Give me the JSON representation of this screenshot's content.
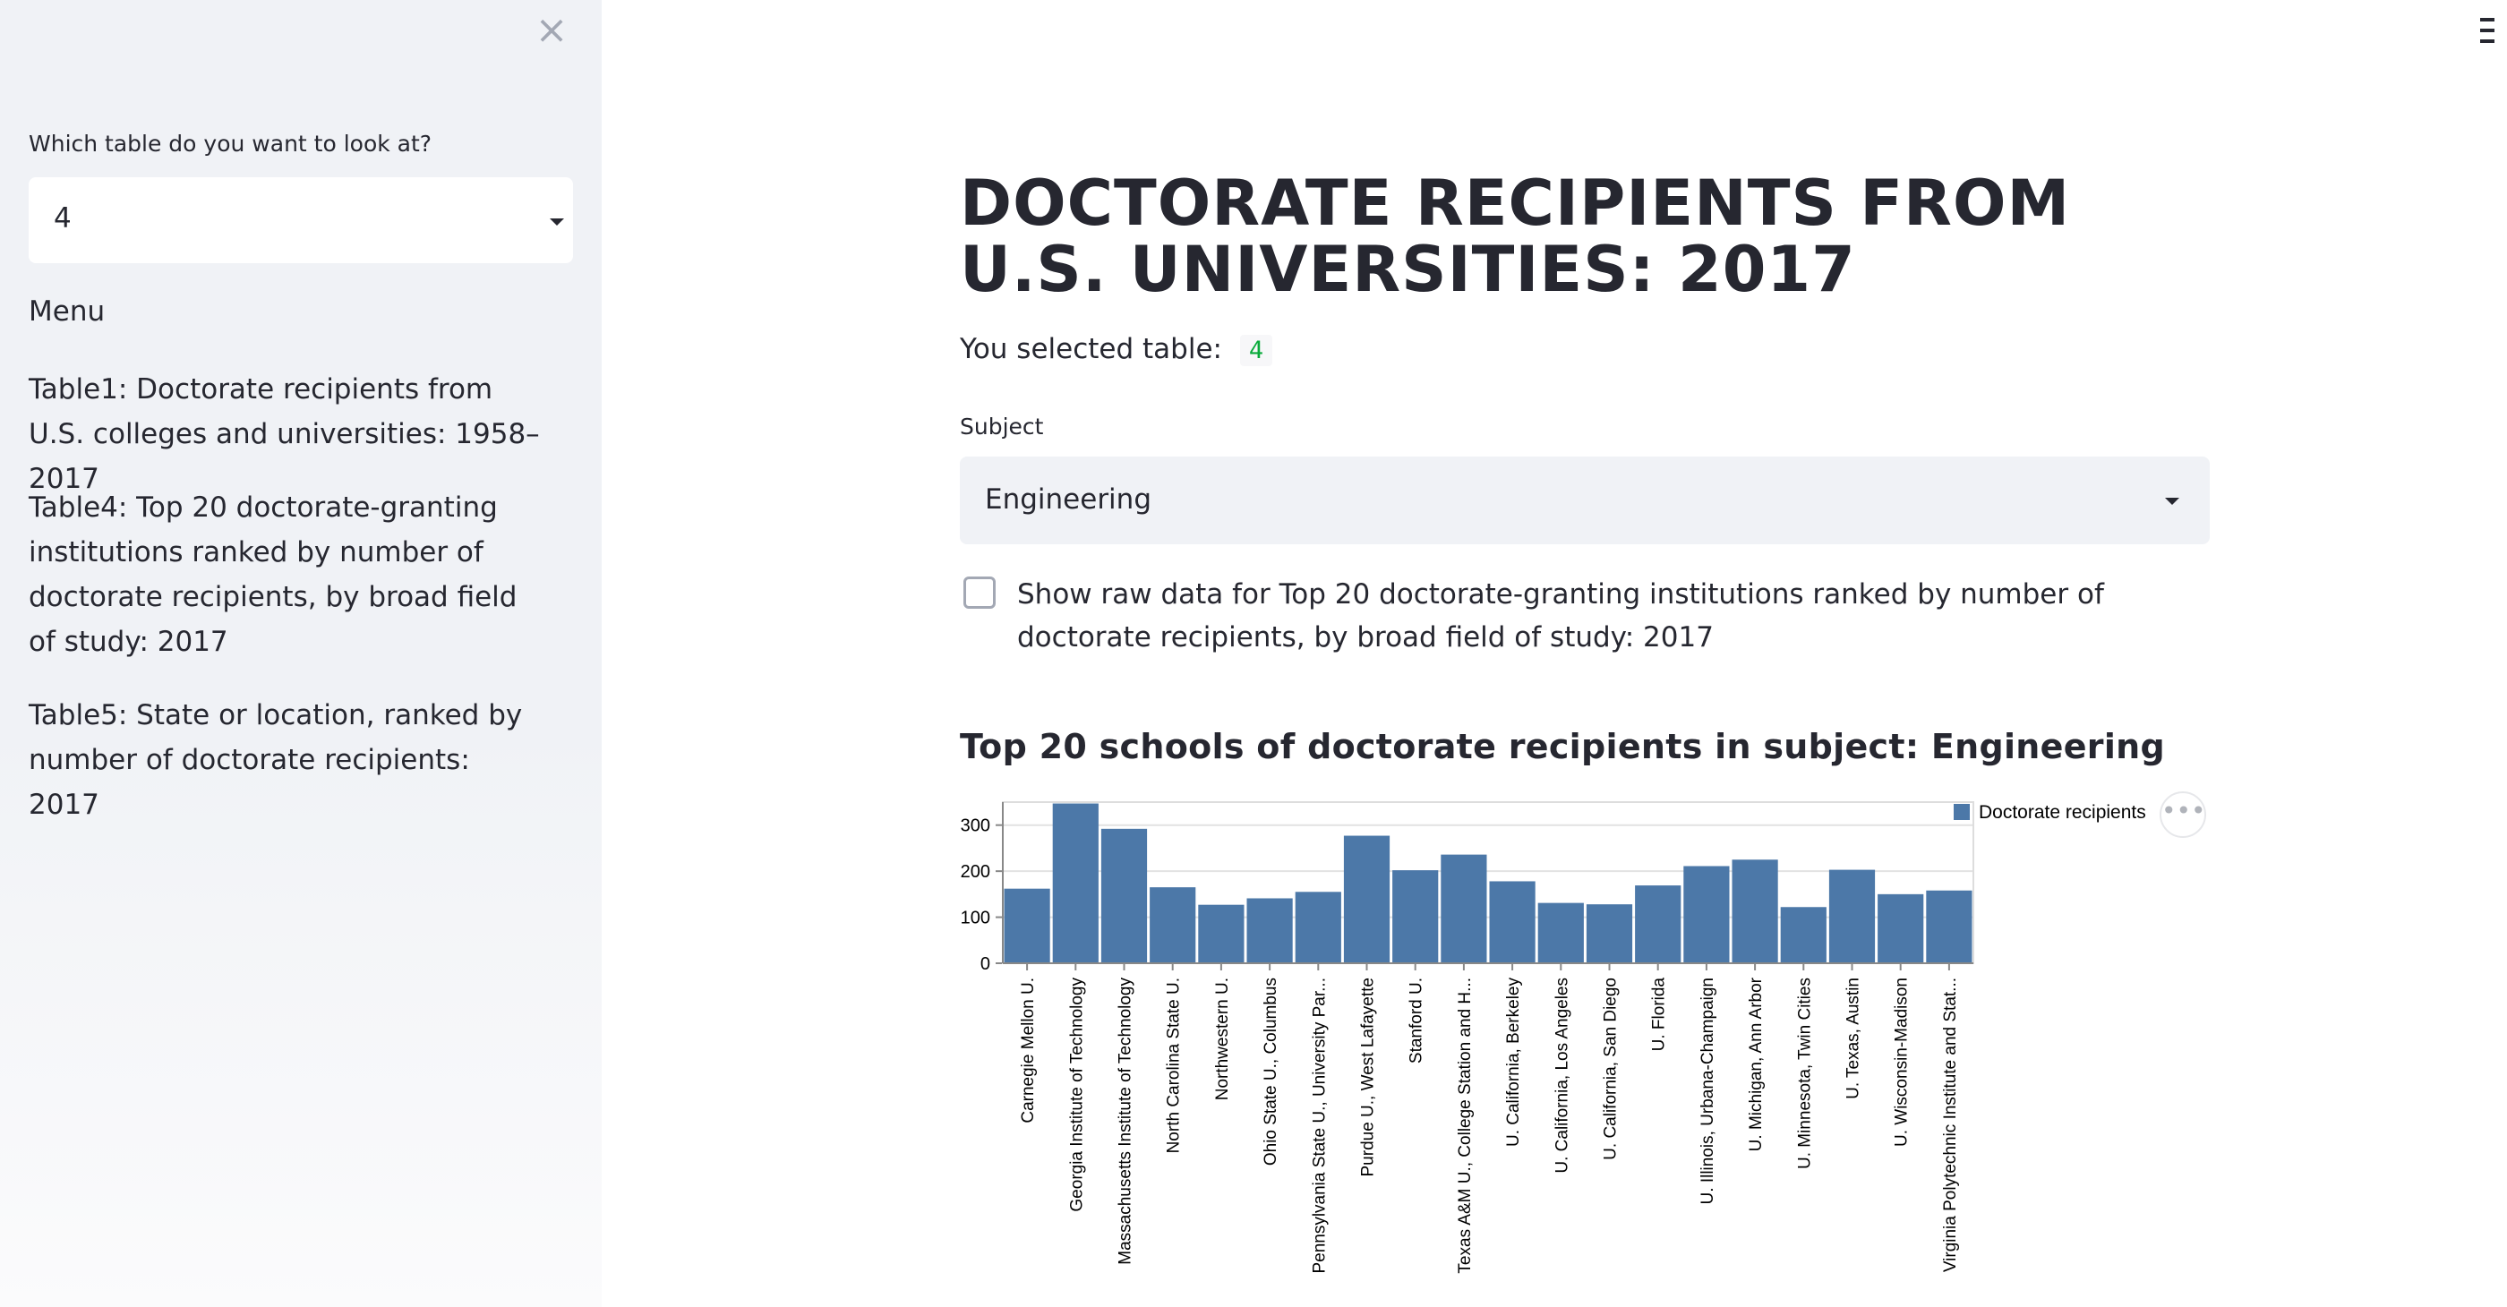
{
  "sidebar": {
    "select_label": "Which table do you want to look at?",
    "select_value": "4",
    "menu_title": "Menu",
    "menu_items": [
      {
        "label": "Table1: Doctorate recipients from U.S. colleges and universities: 1958–2017"
      },
      {
        "label": "Table4: Top 20 doctorate-granting institutions ranked by number of doctorate recipients, by broad field of study: 2017"
      },
      {
        "label": "Table5: State or location, ranked by number of doctorate recipients: 2017"
      }
    ],
    "close_icon": "×"
  },
  "main": {
    "title": "DOCTORATE RECIPIENTS FROM U.S. UNIVERSITIES: 2017",
    "selected_prefix": "You selected table:",
    "selected_value": "4",
    "subject_label": "Subject",
    "subject_value": "Engineering",
    "checkbox_label": "Show raw data for Top 20 doctorate-granting institutions ranked by number of doctorate recipients, by broad field of study: 2017",
    "checkbox_checked": false,
    "chart_title": "Top 20 schools of doctorate recipients in subject: Engineering",
    "chart_menu_icon": "•••"
  },
  "colors": {
    "bar": "#4c78a8",
    "sidebar_bg": "#f0f2f6",
    "selected_value_green": "#09ab3b",
    "text": "#262730"
  },
  "chart_data": {
    "type": "bar",
    "categories": [
      "Carnegie Mellon U.",
      "Georgia Institute of Technology",
      "Massachusetts Institute of Technology",
      "North Carolina State U.",
      "Northwestern U.",
      "Ohio State U., Columbus",
      "Pennsylvania State U., University Par...",
      "Purdue U., West Lafayette",
      "Stanford U.",
      "Texas A&M U., College Station and H...",
      "U. California, Berkeley",
      "U. California, Los Angeles",
      "U. California, San Diego",
      "U. Florida",
      "U. Illinois, Urbana-Champaign",
      "U. Michigan, Ann Arbor",
      "U. Minnesota, Twin Cities",
      "U. Texas, Austin",
      "U. Wisconsin-Madison",
      "Virginia Polytechnic Institute and Stat..."
    ],
    "series": [
      {
        "name": "Doctorate recipients",
        "values": [
          162,
          347,
          292,
          165,
          127,
          141,
          155,
          277,
          202,
          236,
          178,
          131,
          128,
          169,
          211,
          225,
          122,
          203,
          150,
          158
        ]
      }
    ],
    "yticks": [
      "0",
      "100",
      "200",
      "300"
    ],
    "ylim": [
      0,
      350
    ],
    "grid": true,
    "legend_position": "top-right"
  }
}
